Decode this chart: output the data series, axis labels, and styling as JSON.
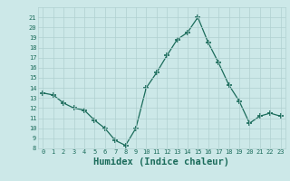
{
  "x": [
    0,
    1,
    2,
    3,
    4,
    5,
    6,
    7,
    8,
    9,
    10,
    11,
    12,
    13,
    14,
    15,
    16,
    17,
    18,
    19,
    20,
    21,
    22,
    23
  ],
  "y": [
    13.5,
    13.3,
    12.5,
    12.0,
    11.8,
    10.8,
    10.0,
    8.8,
    8.3,
    10.0,
    14.0,
    15.5,
    17.2,
    18.8,
    19.5,
    21.0,
    18.5,
    16.5,
    14.3,
    12.7,
    10.5,
    11.2,
    11.5,
    11.2
  ],
  "xlabel": "Humidex (Indice chaleur)",
  "ylim": [
    8,
    22
  ],
  "xlim": [
    -0.5,
    23.5
  ],
  "yticks": [
    8,
    9,
    10,
    11,
    12,
    13,
    14,
    15,
    16,
    17,
    18,
    19,
    20,
    21
  ],
  "xticks": [
    0,
    1,
    2,
    3,
    4,
    5,
    6,
    7,
    8,
    9,
    10,
    11,
    12,
    13,
    14,
    15,
    16,
    17,
    18,
    19,
    20,
    21,
    22,
    23
  ],
  "line_color": "#1a6b5a",
  "marker_color": "#1a6b5a",
  "bg_color": "#cce8e8",
  "grid_color": "#b0d0d0",
  "label_color": "#1a6b5a",
  "tick_color": "#1a6b5a",
  "tick_fontsize": 5.0,
  "xlabel_fontsize": 7.5
}
